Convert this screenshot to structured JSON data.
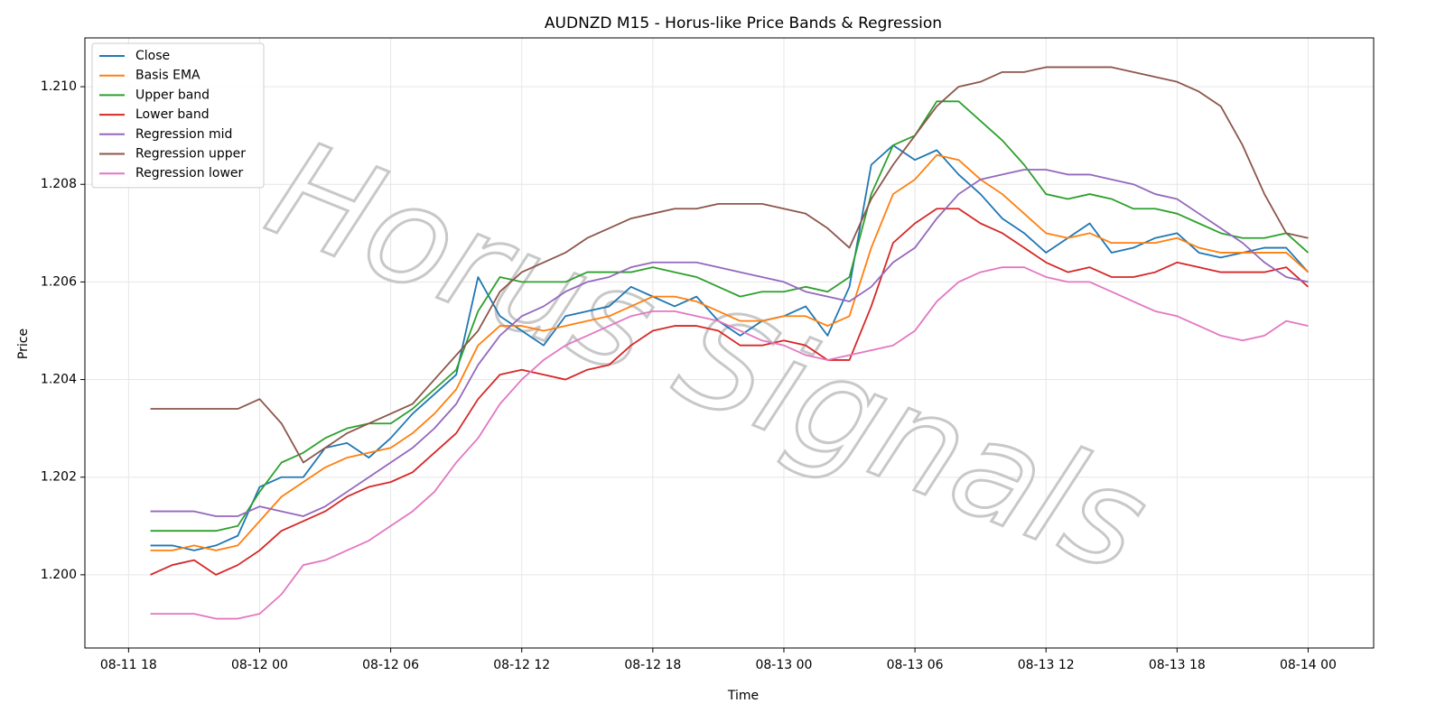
{
  "chart_data": {
    "type": "line",
    "title": "AUDNZD M15 - Horus-like Price Bands & Regression",
    "x_label": "Time",
    "y_label": "Price",
    "watermark": "Horus Signals",
    "x": [
      "08-11 19",
      "08-11 20",
      "08-11 21",
      "08-11 22",
      "08-11 23",
      "08-12 00",
      "08-12 01",
      "08-12 02",
      "08-12 03",
      "08-12 04",
      "08-12 05",
      "08-12 06",
      "08-12 07",
      "08-12 08",
      "08-12 09",
      "08-12 10",
      "08-12 11",
      "08-12 12",
      "08-12 13",
      "08-12 14",
      "08-12 15",
      "08-12 16",
      "08-12 17",
      "08-12 18",
      "08-12 19",
      "08-12 20",
      "08-12 21",
      "08-12 22",
      "08-12 23",
      "08-13 00",
      "08-13 01",
      "08-13 02",
      "08-13 03",
      "08-13 04",
      "08-13 05",
      "08-13 06",
      "08-13 07",
      "08-13 08",
      "08-13 09",
      "08-13 10",
      "08-13 11",
      "08-13 12",
      "08-13 13",
      "08-13 14",
      "08-13 15",
      "08-13 16",
      "08-13 17",
      "08-13 18",
      "08-13 19",
      "08-13 20",
      "08-13 21",
      "08-13 22",
      "08-13 23",
      "08-14 00"
    ],
    "xlim": [
      "08-11 16",
      "08-14 03"
    ],
    "xticks": [
      "08-11 18",
      "08-12 00",
      "08-12 06",
      "08-12 12",
      "08-12 18",
      "08-13 00",
      "08-13 06",
      "08-13 12",
      "08-13 18",
      "08-14 00"
    ],
    "ylim": [
      1.1985,
      1.211
    ],
    "yticks": [
      {
        "value": 1.2,
        "label": "1.200"
      },
      1.202,
      1.204,
      1.206,
      1.208,
      {
        "value": 1.21,
        "label": "1.210"
      }
    ],
    "grid": true,
    "legend": "upper left",
    "series": [
      {
        "name": "Close",
        "color": "#1f77b4",
        "values": [
          1.2006,
          1.2006,
          1.2005,
          1.2006,
          1.2008,
          1.2018,
          1.202,
          1.202,
          1.2026,
          1.2027,
          1.2024,
          1.2028,
          1.2033,
          1.2037,
          1.2041,
          1.2061,
          1.2053,
          1.205,
          1.2047,
          1.2053,
          1.2054,
          1.2055,
          1.2059,
          1.2057,
          1.2055,
          1.2057,
          1.2052,
          1.2049,
          1.2052,
          1.2053,
          1.2055,
          1.2049,
          1.2059,
          1.2084,
          1.2088,
          1.2085,
          1.2087,
          1.2082,
          1.2078,
          1.2073,
          1.207,
          1.2066,
          1.2069,
          1.2072,
          1.2066,
          1.2067,
          1.2069,
          1.207,
          1.2066,
          1.2065,
          1.2066,
          1.2067,
          1.2067,
          1.2062
        ]
      },
      {
        "name": "Basis EMA",
        "color": "#ff7f0e",
        "values": [
          1.2005,
          1.2005,
          1.2006,
          1.2005,
          1.2006,
          1.2011,
          1.2016,
          1.2019,
          1.2022,
          1.2024,
          1.2025,
          1.2026,
          1.2029,
          1.2033,
          1.2038,
          1.2047,
          1.2051,
          1.2051,
          1.205,
          1.2051,
          1.2052,
          1.2053,
          1.2055,
          1.2057,
          1.2057,
          1.2056,
          1.2054,
          1.2052,
          1.2052,
          1.2053,
          1.2053,
          1.2051,
          1.2053,
          1.2067,
          1.2078,
          1.2081,
          1.2086,
          1.2085,
          1.2081,
          1.2078,
          1.2074,
          1.207,
          1.2069,
          1.207,
          1.2068,
          1.2068,
          1.2068,
          1.2069,
          1.2067,
          1.2066,
          1.2066,
          1.2066,
          1.2066,
          1.2062
        ]
      },
      {
        "name": "Upper band",
        "color": "#2ca02c",
        "values": [
          1.2009,
          1.2009,
          1.2009,
          1.2009,
          1.201,
          1.2017,
          1.2023,
          1.2025,
          1.2028,
          1.203,
          1.2031,
          1.2031,
          1.2034,
          1.2038,
          1.2042,
          1.2054,
          1.2061,
          1.206,
          1.206,
          1.206,
          1.2062,
          1.2062,
          1.2062,
          1.2063,
          1.2062,
          1.2061,
          1.2059,
          1.2057,
          1.2058,
          1.2058,
          1.2059,
          1.2058,
          1.2061,
          1.2078,
          1.2088,
          1.209,
          1.2097,
          1.2097,
          1.2093,
          1.2089,
          1.2084,
          1.2078,
          1.2077,
          1.2078,
          1.2077,
          1.2075,
          1.2075,
          1.2074,
          1.2072,
          1.207,
          1.2069,
          1.2069,
          1.207,
          1.2066
        ]
      },
      {
        "name": "Lower band",
        "color": "#d62728",
        "values": [
          1.2,
          1.2002,
          1.2003,
          1.2,
          1.2002,
          1.2005,
          1.2009,
          1.2011,
          1.2013,
          1.2016,
          1.2018,
          1.2019,
          1.2021,
          1.2025,
          1.2029,
          1.2036,
          1.2041,
          1.2042,
          1.2041,
          1.204,
          1.2042,
          1.2043,
          1.2047,
          1.205,
          1.2051,
          1.2051,
          1.205,
          1.2047,
          1.2047,
          1.2048,
          1.2047,
          1.2044,
          1.2044,
          1.2055,
          1.2068,
          1.2072,
          1.2075,
          1.2075,
          1.2072,
          1.207,
          1.2067,
          1.2064,
          1.2062,
          1.2063,
          1.2061,
          1.2061,
          1.2062,
          1.2064,
          1.2063,
          1.2062,
          1.2062,
          1.2062,
          1.2063,
          1.2059
        ]
      },
      {
        "name": "Regression mid",
        "color": "#9467bd",
        "values": [
          1.2013,
          1.2013,
          1.2013,
          1.2012,
          1.2012,
          1.2014,
          1.2013,
          1.2012,
          1.2014,
          1.2017,
          1.202,
          1.2023,
          1.2026,
          1.203,
          1.2035,
          1.2043,
          1.2049,
          1.2053,
          1.2055,
          1.2058,
          1.206,
          1.2061,
          1.2063,
          1.2064,
          1.2064,
          1.2064,
          1.2063,
          1.2062,
          1.2061,
          1.206,
          1.2058,
          1.2057,
          1.2056,
          1.2059,
          1.2064,
          1.2067,
          1.2073,
          1.2078,
          1.2081,
          1.2082,
          1.2083,
          1.2083,
          1.2082,
          1.2082,
          1.2081,
          1.208,
          1.2078,
          1.2077,
          1.2074,
          1.2071,
          1.2068,
          1.2064,
          1.2061,
          1.206
        ]
      },
      {
        "name": "Regression upper",
        "color": "#8c564b",
        "values": [
          1.2034,
          1.2034,
          1.2034,
          1.2034,
          1.2034,
          1.2036,
          1.2031,
          1.2023,
          1.2026,
          1.2029,
          1.2031,
          1.2033,
          1.2035,
          1.204,
          1.2045,
          1.205,
          1.2058,
          1.2062,
          1.2064,
          1.2066,
          1.2069,
          1.2071,
          1.2073,
          1.2074,
          1.2075,
          1.2075,
          1.2076,
          1.2076,
          1.2076,
          1.2075,
          1.2074,
          1.2071,
          1.2067,
          1.2077,
          1.2084,
          1.209,
          1.2096,
          1.21,
          1.2101,
          1.2103,
          1.2103,
          1.2104,
          1.2104,
          1.2104,
          1.2104,
          1.2103,
          1.2102,
          1.2101,
          1.2099,
          1.2096,
          1.2088,
          1.2078,
          1.207,
          1.2069
        ]
      },
      {
        "name": "Regression lower",
        "color": "#e377c2",
        "values": [
          1.1992,
          1.1992,
          1.1992,
          1.1991,
          1.1991,
          1.1992,
          1.1996,
          1.2002,
          1.2003,
          1.2005,
          1.2007,
          1.201,
          1.2013,
          1.2017,
          1.2023,
          1.2028,
          1.2035,
          1.204,
          1.2044,
          1.2047,
          1.2049,
          1.2051,
          1.2053,
          1.2054,
          1.2054,
          1.2053,
          1.2052,
          1.205,
          1.2048,
          1.2047,
          1.2045,
          1.2044,
          1.2045,
          1.2046,
          1.2047,
          1.205,
          1.2056,
          1.206,
          1.2062,
          1.2063,
          1.2063,
          1.2061,
          1.206,
          1.206,
          1.2058,
          1.2056,
          1.2054,
          1.2053,
          1.2051,
          1.2049,
          1.2048,
          1.2049,
          1.2052,
          1.2051
        ]
      }
    ]
  }
}
